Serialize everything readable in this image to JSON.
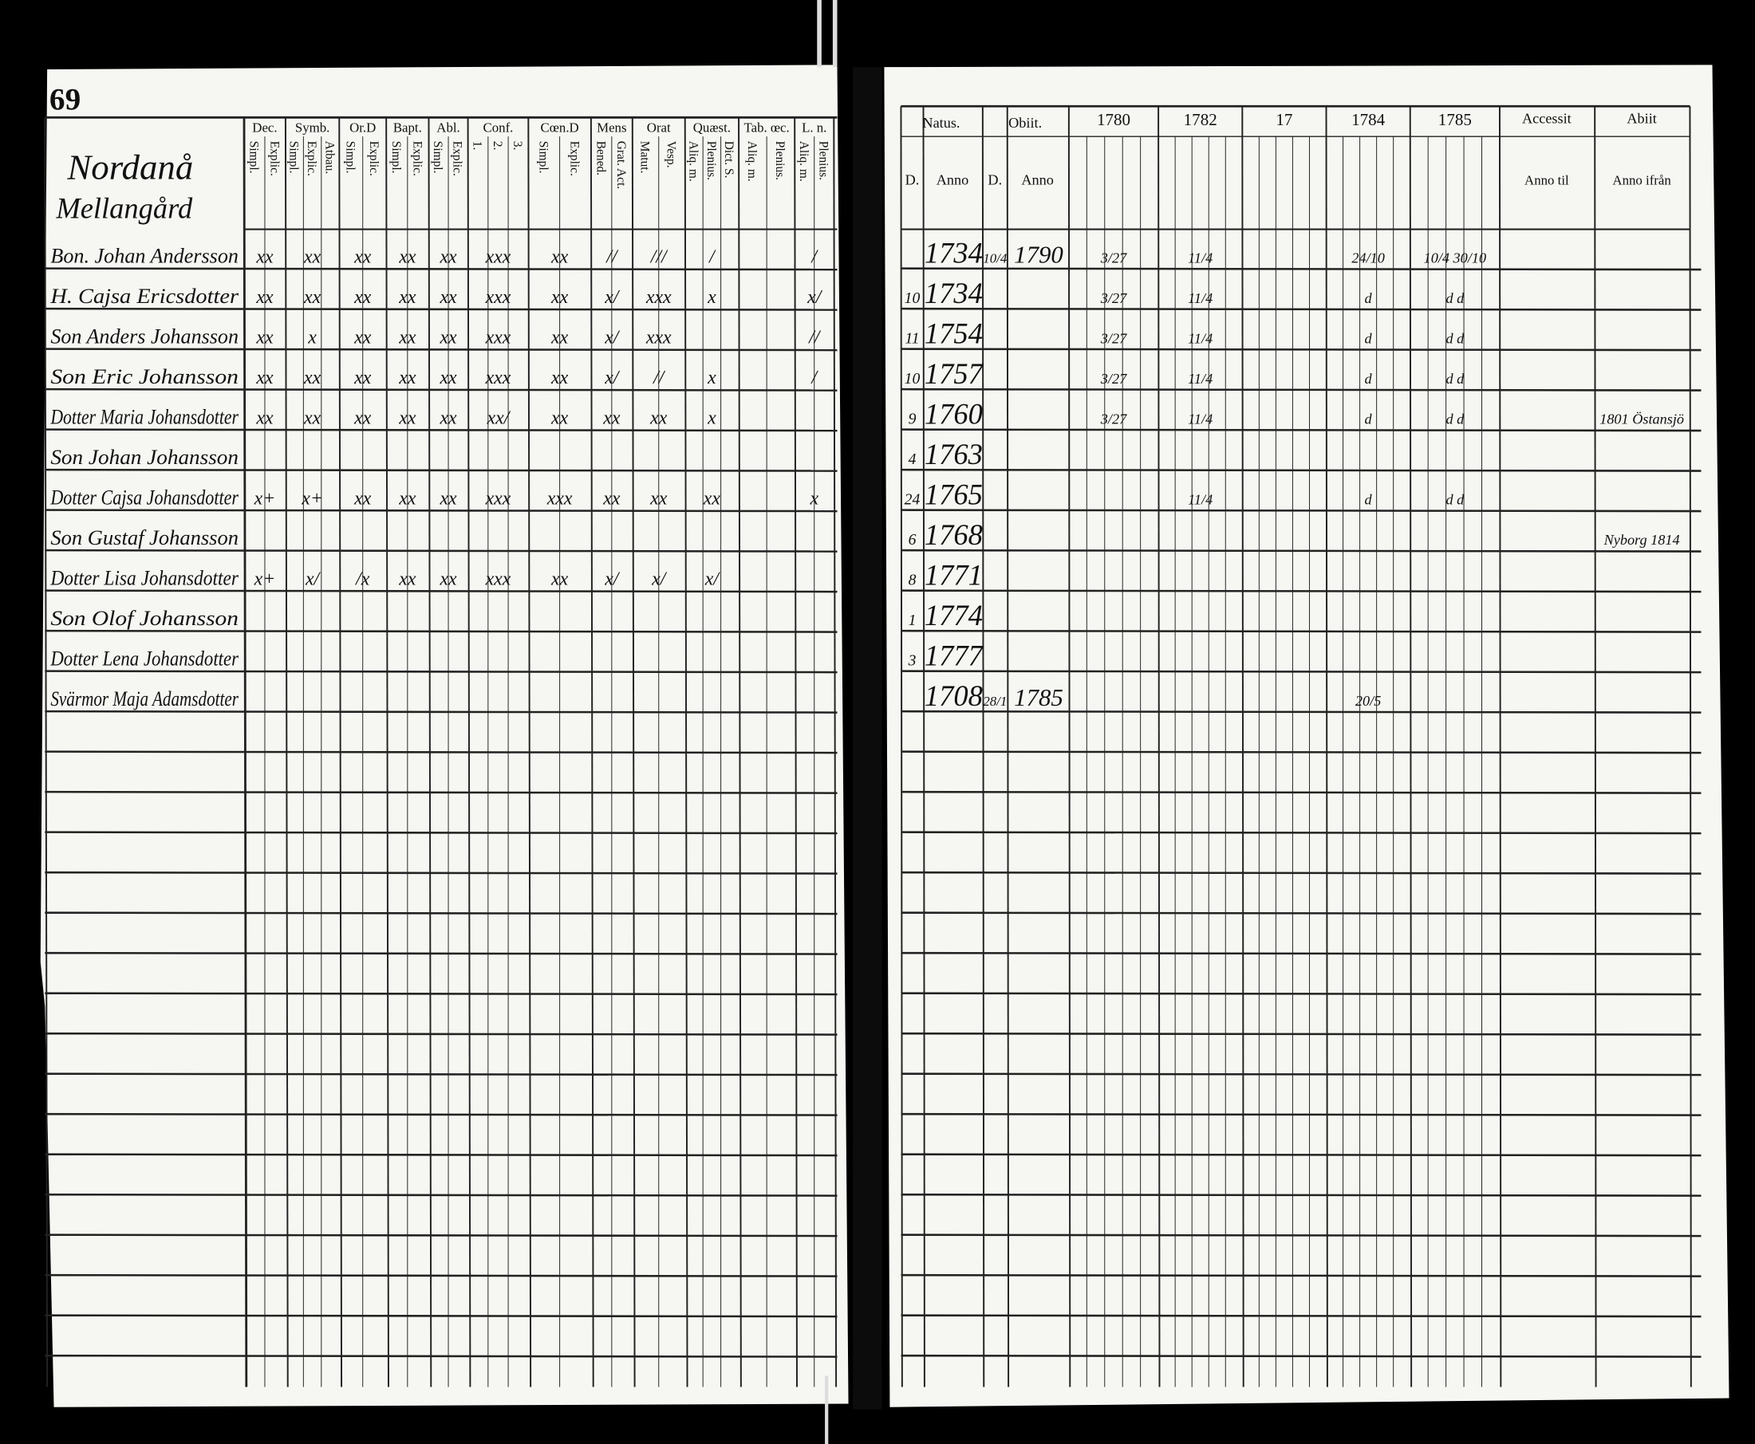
{
  "register": {
    "page_number": "69",
    "left": {
      "village": "Nordanå",
      "farm": "Mellangård",
      "headers": [
        {
          "label": "Dec.",
          "subs": [
            "Simpl.",
            "Explic."
          ]
        },
        {
          "label": "Symb.",
          "subs": [
            "Simpl.",
            "Explic.",
            "Atbau."
          ]
        },
        {
          "label": "Or.D",
          "subs": [
            "Simpl.",
            "Explic."
          ]
        },
        {
          "label": "Bapt.",
          "subs": [
            "Simpl.",
            "Explic."
          ]
        },
        {
          "label": "Abl.",
          "subs": [
            "Simpl.",
            "Explic."
          ]
        },
        {
          "label": "Conf.",
          "subs": [
            "1.",
            "2.",
            "3."
          ]
        },
        {
          "label": "Cœn.D",
          "subs": [
            "Simpl.",
            "Explic."
          ]
        },
        {
          "label": "Mens",
          "subs": [
            "Bened.",
            "Grat. Act."
          ]
        },
        {
          "label": "Orat",
          "subs": [
            "Matut.",
            "Vesp."
          ]
        },
        {
          "label": "Quæst.",
          "subs": [
            "Aliq. m.",
            "Plenius.",
            "Dict. S."
          ]
        },
        {
          "label": "Tab. œc.",
          "subs": [
            "Aliq. m.",
            "Plenius."
          ]
        },
        {
          "label": "L. n.",
          "subs": [
            "Aliq. m.",
            "Plenius."
          ]
        }
      ]
    },
    "right": {
      "natus": "Natus.",
      "obiit": "Obiit.",
      "natus_day": "D.",
      "natus_year": "Anno",
      "obiit_day": "D.",
      "obiit_year": "Anno",
      "years": {
        "y1780": "1780",
        "y1782": "1782",
        "y17": "17",
        "y1784": "1784",
        "y1785": "1785"
      },
      "accessit": "Accessit",
      "abiit": "Abiit",
      "anno_til": "Anno til",
      "anno_ifran": "Anno ifrån"
    },
    "rows": [
      {
        "name": "Bon. Johan Andersson",
        "marks": [
          "xx",
          "xx",
          "xx",
          "xx",
          "xx",
          "xxx",
          "xx",
          "//",
          "///",
          "/",
          "/"
        ],
        "born": "1734",
        "died_day": "10/4",
        "died_year": "1790",
        "years": {
          "y1780": "3/27",
          "y1782": "11/4",
          "y1784": "24/10",
          "y1785": "10/4 30/10"
        }
      },
      {
        "name": "H. Cajsa Ericsdotter",
        "marks": [
          "xx",
          "xx",
          "xx",
          "xx",
          "xx",
          "xxx",
          "xx",
          "x/",
          "xxx",
          "x",
          "x/"
        ],
        "day": "10",
        "born": "1734",
        "years": {
          "y1780": "3/27",
          "y1782": "11/4",
          "y1784": "d",
          "y1785": "d d"
        }
      },
      {
        "name": "Son Anders Johansson",
        "marks": [
          "xx",
          "x",
          "xx",
          "xx",
          "xx",
          "xxx",
          "xx",
          "x/",
          "xxx",
          "",
          "//"
        ],
        "day": "11",
        "born": "1754",
        "years": {
          "y1780": "3/27",
          "y1782": "11/4",
          "y1784": "d",
          "y1785": "d d"
        }
      },
      {
        "name": "Son Eric Johansson",
        "marks": [
          "xx",
          "xx",
          "xx",
          "xx",
          "xx",
          "xxx",
          "xx",
          "x/",
          "//",
          "x",
          "/"
        ],
        "day": "10",
        "born": "1757",
        "years": {
          "y1780": "3/27",
          "y1782": "11/4",
          "y1784": "d",
          "y1785": "d d"
        }
      },
      {
        "name": "Dotter Maria Johansdotter",
        "marks": [
          "xx",
          "xx",
          "xx",
          "xx",
          "xx",
          "xx/",
          "xx",
          "xx",
          "xx",
          "x"
        ],
        "day": "9",
        "born": "1760",
        "years": {
          "y1780": "3/27",
          "y1782": "11/4",
          "y1784": "d",
          "y1785": "d d"
        },
        "note": "1801 Östansjö"
      },
      {
        "name": "Son Johan Johansson",
        "marks": [],
        "day": "4",
        "born": "1763",
        "years": {}
      },
      {
        "name": "Dotter Cajsa Johansdotter",
        "marks": [
          "x+",
          "x+",
          "xx",
          "xx",
          "xx",
          "xxx",
          "xxx",
          "xx",
          "xx",
          "xx",
          "x"
        ],
        "day": "24",
        "born": "1765",
        "years": {
          "y1782": "11/4",
          "y1784": "d",
          "y1785": "d d"
        }
      },
      {
        "name": "Son Gustaf Johansson",
        "marks": [],
        "day": "6",
        "born": "1768",
        "years": {},
        "note": "Nyborg 1814"
      },
      {
        "name": "Dotter Lisa Johansdotter",
        "marks": [
          "x+",
          "x/",
          "/x",
          "xx",
          "xx",
          "xxx",
          "xx",
          "x/",
          "x/",
          "x/"
        ],
        "day": "8",
        "born": "1771",
        "years": {}
      },
      {
        "name": "Son Olof Johansson",
        "marks": [],
        "day": "1",
        "born": "1774",
        "years": {}
      },
      {
        "name": "Dotter Lena Johansdotter",
        "marks": [],
        "day": "3",
        "born": "1777",
        "years": {}
      },
      {
        "name": "Svärmor Maja Adamsdotter",
        "marks": [],
        "born": "1708",
        "died_day": "28/1",
        "died_year": "1785",
        "years": {
          "y1784": "20/5"
        }
      }
    ]
  }
}
